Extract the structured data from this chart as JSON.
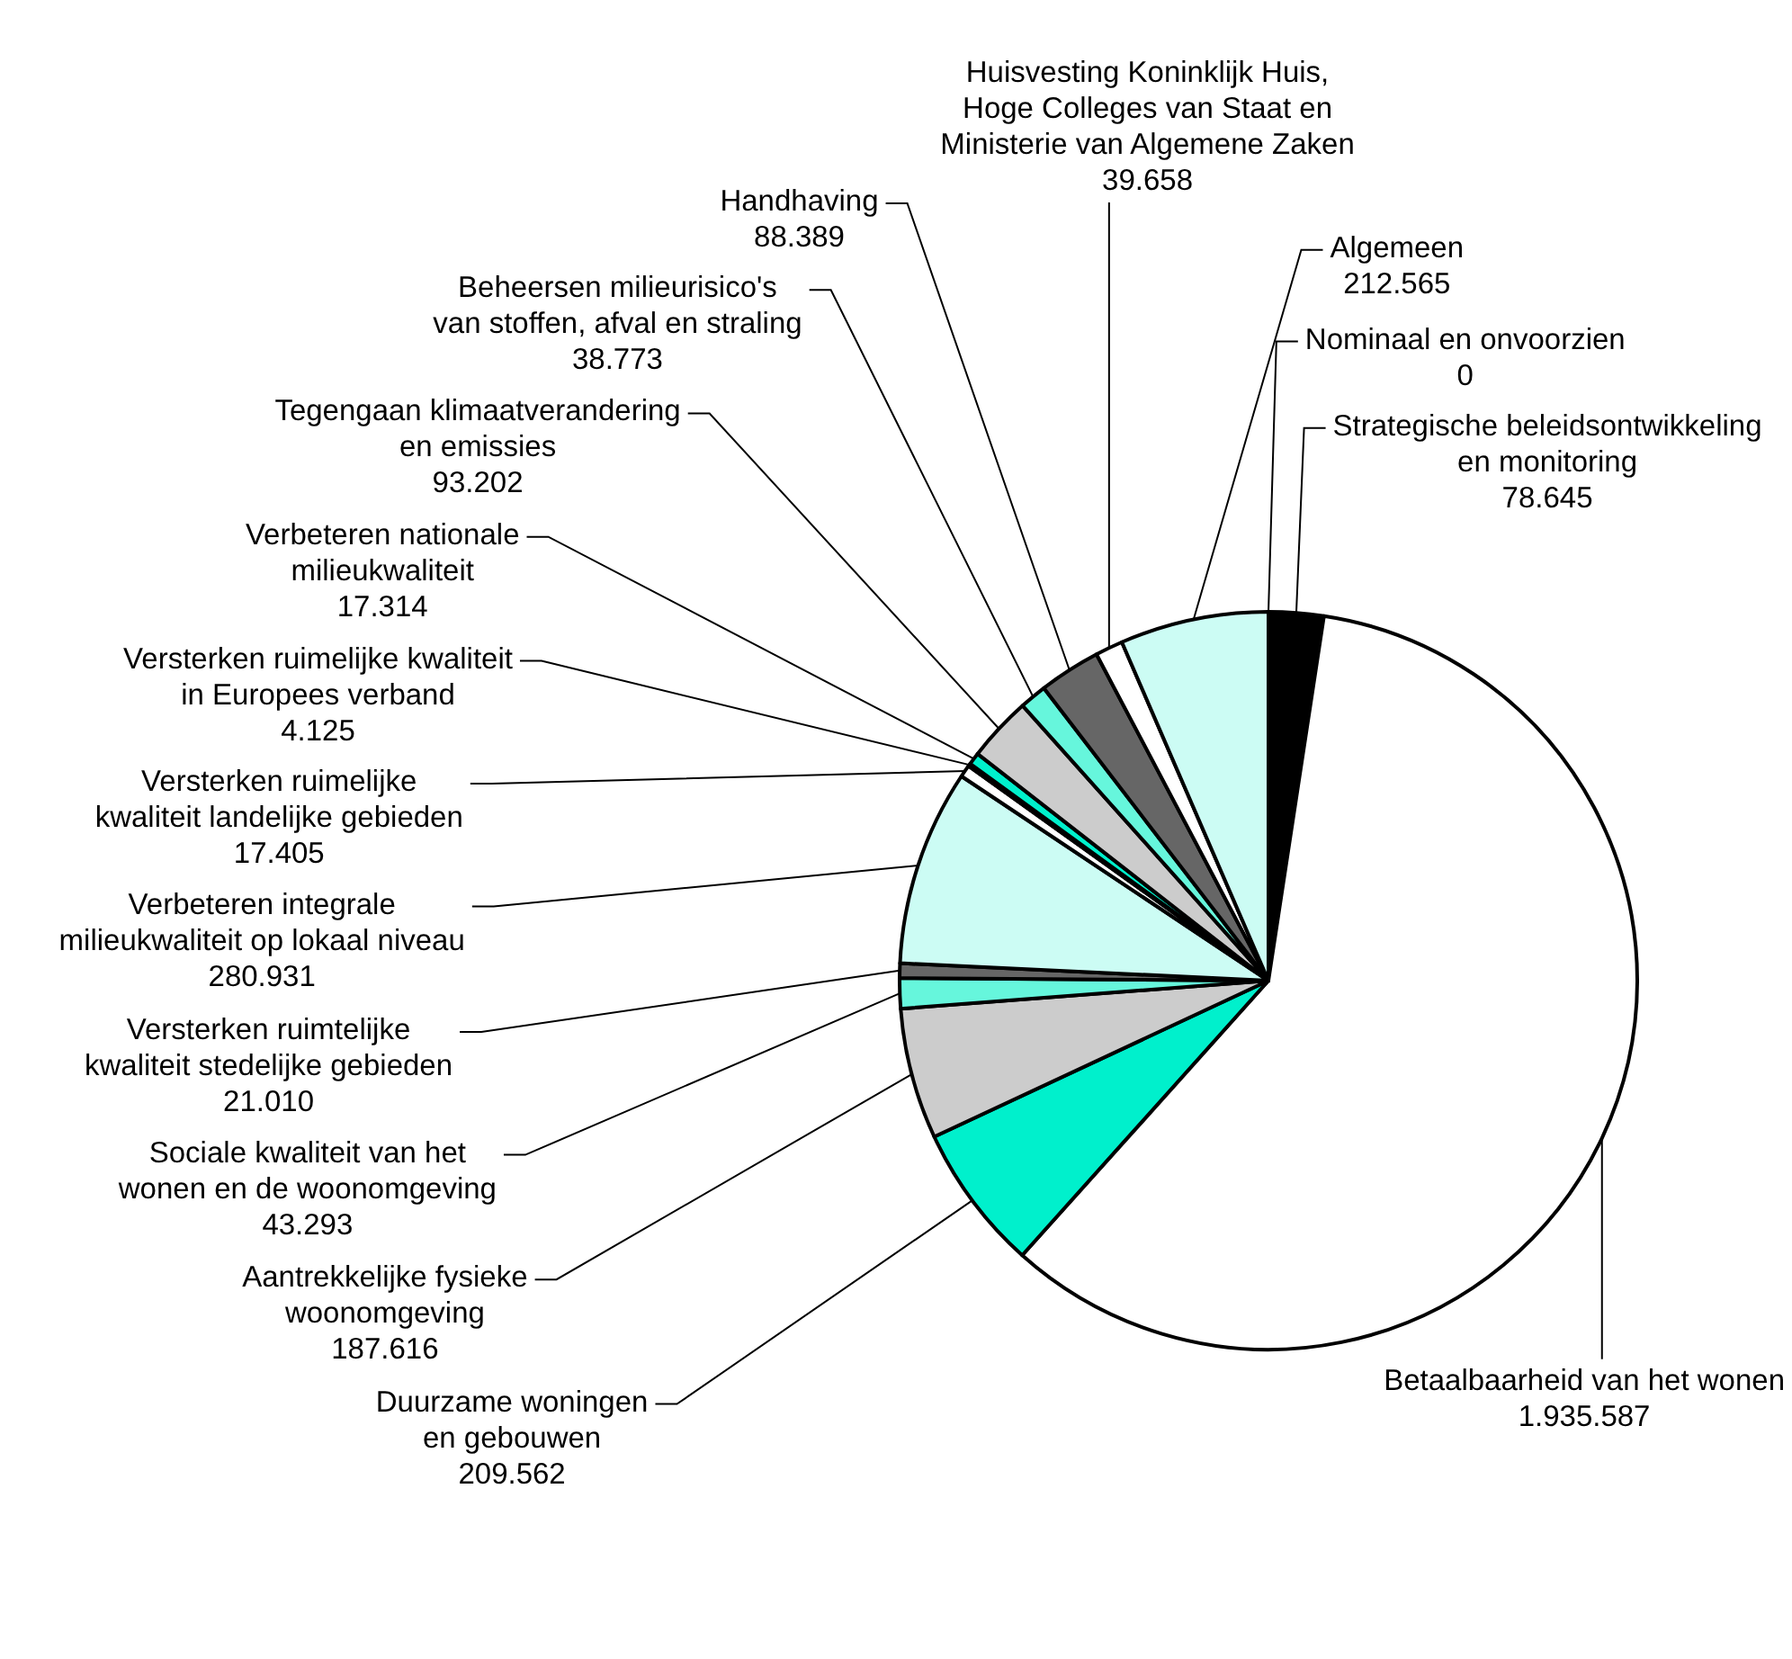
{
  "chart_data": {
    "type": "pie",
    "categories": [
      "Strategische beleidsontwikkeling en monitoring",
      "Betaalbaarheid van het wonen",
      "Duurzame woningen en gebouwen",
      "Aantrekkelijke fysieke woonomgeving",
      "Sociale kwaliteit van het wonen en de woonomgeving",
      "Versterken ruimtelijke kwaliteit stedelijke gebieden",
      "Verbeteren integrale milieukwaliteit op lokaal niveau",
      "Versterken ruimelijke kwaliteit landelijke gebieden",
      "Versterken ruimelijke kwaliteit in Europees verband",
      "Verbeteren nationale milieukwaliteit",
      "Tegengaan klimaatverandering en emissies",
      "Beheersen milieurisico's van stoffen, afval en straling",
      "Handhaving",
      "Huisvesting Koninklijk Huis, Hoge Colleges van Staat en Ministerie van Algemene Zaken",
      "Algemeen",
      "Nominaal en onvoorzien"
    ],
    "values": [
      78645,
      1935587,
      209562,
      187616,
      43293,
      21010,
      280931,
      17405,
      4125,
      17314,
      93202,
      38773,
      88389,
      39658,
      212565,
      0
    ],
    "value_labels": [
      "78.645",
      "1.935.587",
      "209.562",
      "187.616",
      "43.293",
      "21.010",
      "280.931",
      "17.405",
      "4.125",
      "17.314",
      "93.202",
      "38.773",
      "88.389",
      "39.658",
      "212.565",
      "0"
    ],
    "colors": [
      "#000000",
      "#ffffff",
      "#00f0cc",
      "#cccccc",
      "#66f6dc",
      "#666666",
      "#ccfcf4",
      "#ffffff",
      "#000000",
      "#00f0cc",
      "#cccccc",
      "#66f6dc",
      "#666666",
      "#ffffff",
      "#ccfcf4",
      "#000000"
    ]
  }
}
